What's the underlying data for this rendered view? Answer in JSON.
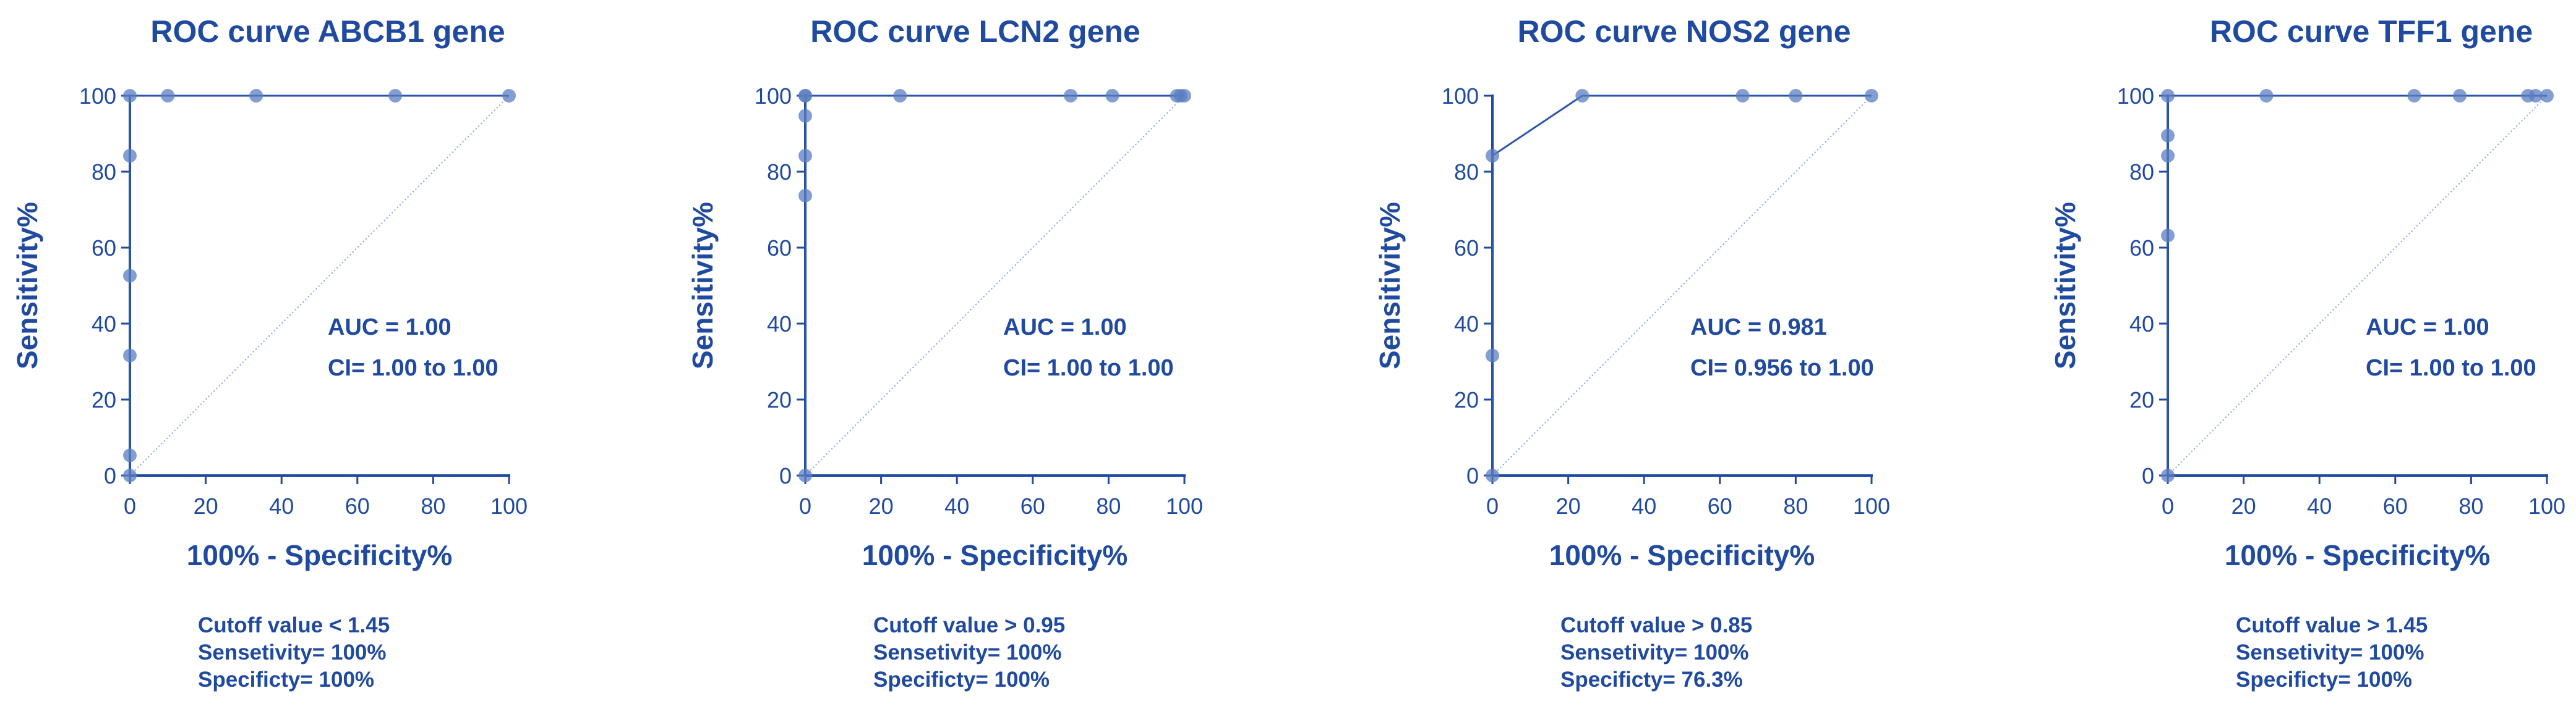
{
  "colors": {
    "axis": "#1f4aa0",
    "curve": "#2a55ad",
    "point": "#5b7ec2",
    "diagonal": "#7f9fd2",
    "text": "#1f4aa0"
  },
  "chart_data": [
    {
      "type": "line",
      "title": "ROC curve ABCB1 gene",
      "xlabel": "100% - Specificity%",
      "ylabel": "Sensitivity%",
      "xlim": [
        0,
        100
      ],
      "ylim": [
        0,
        100
      ],
      "xticks": [
        0,
        20,
        40,
        60,
        80,
        100
      ],
      "yticks": [
        0,
        20,
        40,
        60,
        80,
        100
      ],
      "series": [
        {
          "name": "ROC",
          "x": [
            0,
            0,
            0,
            0,
            0,
            0,
            10,
            33.3,
            70,
            100
          ],
          "y": [
            0,
            5.3,
            31.6,
            52.6,
            84.2,
            100,
            100,
            100,
            100,
            100
          ]
        }
      ],
      "reference_line": {
        "x": [
          0,
          100
        ],
        "y": [
          0,
          100
        ]
      },
      "annotations": [
        "AUC = 1.00",
        "CI= 1.00 to 1.00"
      ],
      "footer": [
        "Cutoff value < 1.45",
        "Sensetivity= 100%",
        "Specificty= 100%"
      ]
    },
    {
      "type": "line",
      "title": "ROC curve LCN2 gene",
      "xlabel": "100% - Specificity%",
      "ylabel": "Sensitivity%",
      "xlim": [
        0,
        100
      ],
      "ylim": [
        0,
        100
      ],
      "xticks": [
        0,
        20,
        40,
        60,
        80,
        100
      ],
      "yticks": [
        0,
        20,
        40,
        60,
        80,
        100
      ],
      "series": [
        {
          "name": "ROC",
          "x": [
            0,
            0,
            0,
            0,
            0,
            0,
            25,
            70,
            81,
            98,
            99,
            100
          ],
          "y": [
            0,
            73.7,
            84.2,
            94.7,
            100,
            100,
            100,
            100,
            100,
            100,
            100,
            100
          ]
        }
      ],
      "reference_line": {
        "x": [
          0,
          100
        ],
        "y": [
          0,
          100
        ]
      },
      "annotations": [
        "AUC = 1.00",
        "CI= 1.00 to 1.00"
      ],
      "footer": [
        "Cutoff value > 0.95",
        "Sensetivity= 100%",
        "Specificty= 100%"
      ]
    },
    {
      "type": "line",
      "title": "ROC curve NOS2 gene",
      "xlabel": "100% - Specificity%",
      "ylabel": "Sensitivity%",
      "xlim": [
        0,
        100
      ],
      "ylim": [
        0,
        100
      ],
      "xticks": [
        0,
        20,
        40,
        60,
        80,
        100
      ],
      "yticks": [
        0,
        20,
        40,
        60,
        80,
        100
      ],
      "series": [
        {
          "name": "ROC",
          "x": [
            0,
            0,
            0,
            23.7,
            66,
            80,
            100
          ],
          "y": [
            0,
            31.6,
            84.2,
            100,
            100,
            100,
            100
          ]
        }
      ],
      "reference_line": {
        "x": [
          0,
          100
        ],
        "y": [
          0,
          100
        ]
      },
      "annotations": [
        "AUC = 0.981",
        "CI= 0.956 to 1.00"
      ],
      "footer": [
        "Cutoff value > 0.85",
        "Sensetivity= 100%",
        "Specificty= 76.3%"
      ]
    },
    {
      "type": "line",
      "title": "ROC curve TFF1 gene",
      "xlabel": "100% - Specificity%",
      "ylabel": "Sensitivity%",
      "xlim": [
        0,
        100
      ],
      "ylim": [
        0,
        100
      ],
      "xticks": [
        0,
        20,
        40,
        60,
        80,
        100
      ],
      "yticks": [
        0,
        20,
        40,
        60,
        80,
        100
      ],
      "series": [
        {
          "name": "ROC",
          "x": [
            0,
            0,
            0,
            0,
            0,
            26,
            65,
            77,
            95,
            97,
            100
          ],
          "y": [
            0,
            63.2,
            84.2,
            89.5,
            100,
            100,
            100,
            100,
            100,
            100,
            100
          ]
        }
      ],
      "reference_line": {
        "x": [
          0,
          100
        ],
        "y": [
          0,
          100
        ]
      },
      "annotations": [
        "AUC = 1.00",
        "CI= 1.00 to 1.00"
      ],
      "footer": [
        "Cutoff value > 1.45",
        "Sensetivity= 100%",
        "Specificty= 100%"
      ]
    }
  ]
}
